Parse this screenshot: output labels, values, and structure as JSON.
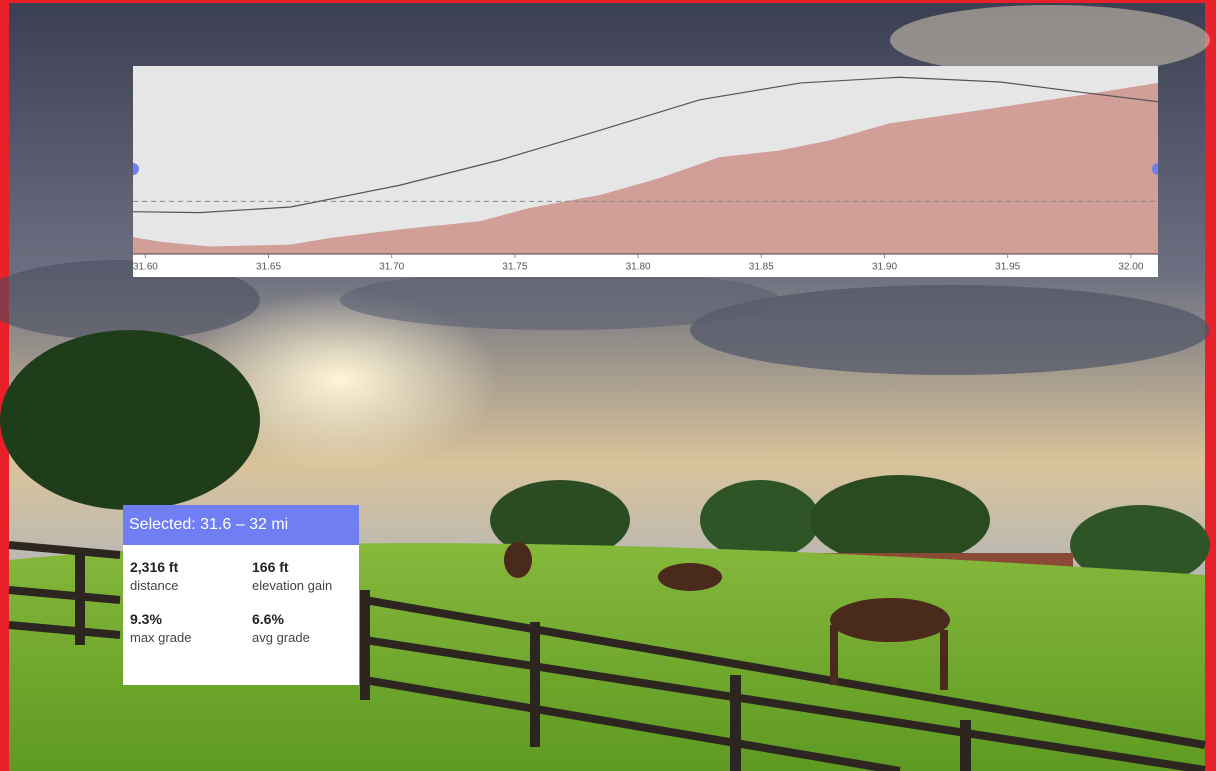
{
  "chart_data": {
    "type": "area",
    "xlim": [
      31.595,
      32.011
    ],
    "ylim": [
      0,
      200
    ],
    "xticks": [
      {
        "value": 31.6,
        "label": "31.60"
      },
      31.65,
      {
        "value": 31.7,
        "label": "31.70"
      },
      31.75,
      {
        "value": 31.8,
        "label": "31.80"
      },
      31.85,
      {
        "value": 31.9,
        "label": "31.90"
      },
      31.95,
      {
        "value": 32.0,
        "label": "32.00"
      }
    ],
    "series": [
      {
        "color": "#d19e98",
        "x": [
          31.595,
          31.606,
          31.626,
          31.659,
          31.675,
          31.703,
          31.736,
          31.756,
          31.785,
          31.809,
          31.833,
          31.857,
          31.878,
          31.902,
          31.931,
          31.959,
          31.98,
          32.011
        ],
        "values": [
          18,
          13,
          8,
          10,
          17,
          26,
          35,
          49,
          63,
          81,
          103,
          110,
          121,
          139,
          150,
          161,
          169,
          182
        ]
      },
      {
        "color": "#555555",
        "line": true,
        "x": [
          31.595,
          31.622,
          31.659,
          31.703,
          31.744,
          31.785,
          31.825,
          31.866,
          31.906,
          31.947,
          31.98,
          32.011
        ],
        "values": [
          45,
          44,
          50,
          73,
          100,
          132,
          164,
          182,
          188,
          183,
          172,
          162
        ]
      }
    ],
    "hline": 56
  },
  "selection_panel": {
    "title": "Selected: 31.6 – 32 mi",
    "stats": [
      {
        "value": "2,316 ft",
        "label": "distance"
      },
      {
        "value": "166 ft",
        "label": "elevation gain"
      },
      {
        "value": "9.3%",
        "label": "max grade"
      },
      {
        "value": "6.6%",
        "label": "avg grade"
      }
    ]
  }
}
